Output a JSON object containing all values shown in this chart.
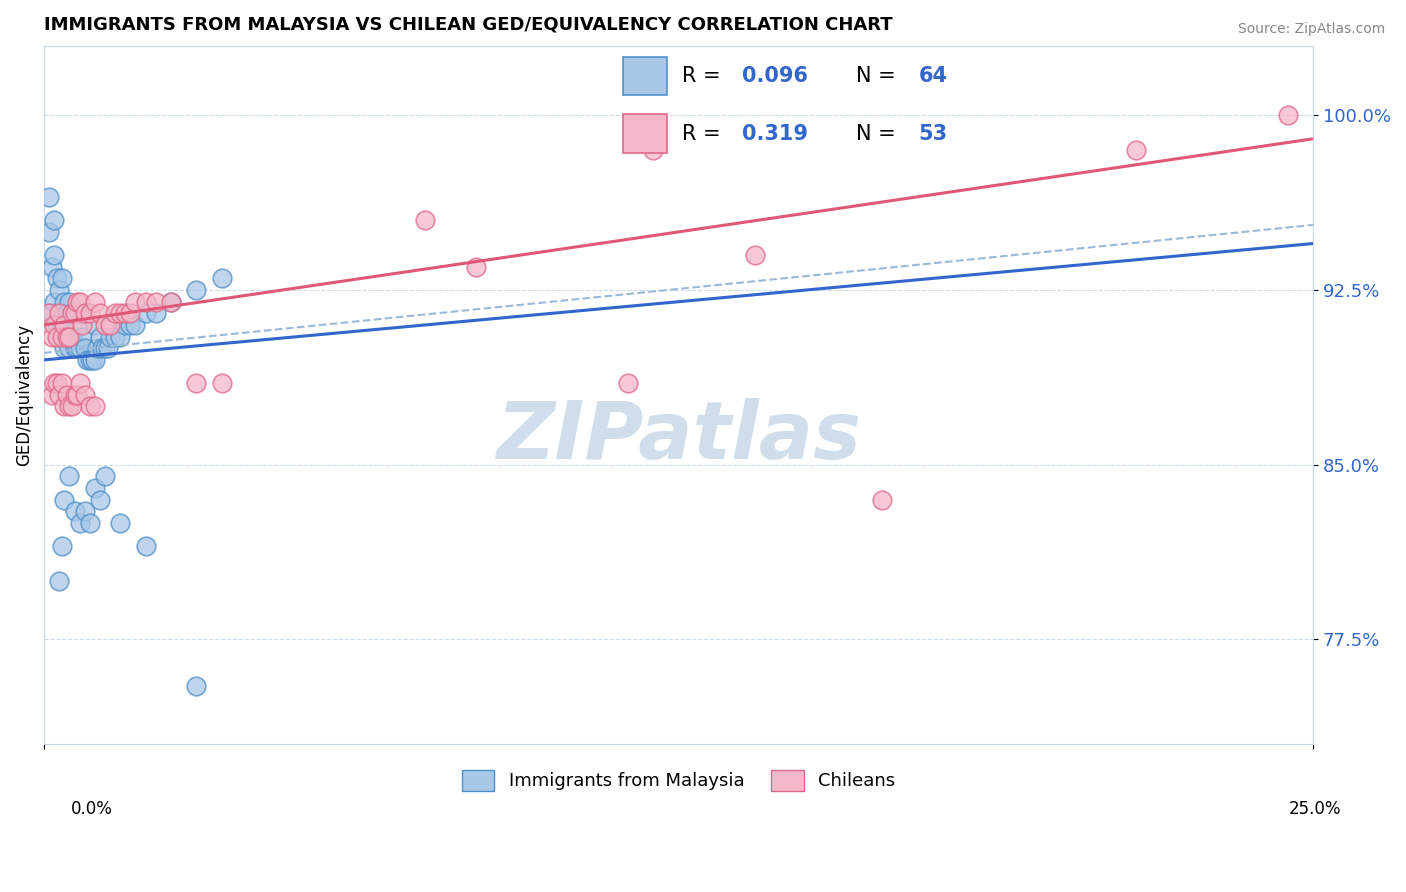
{
  "title": "IMMIGRANTS FROM MALAYSIA VS CHILEAN GED/EQUIVALENCY CORRELATION CHART",
  "source": "Source: ZipAtlas.com",
  "ylabel": "GED/Equivalency",
  "yticks": [
    77.5,
    85.0,
    92.5,
    100.0
  ],
  "ytick_labels": [
    "77.5%",
    "85.0%",
    "92.5%",
    "100.0%"
  ],
  "xmin": 0.0,
  "xmax": 25.0,
  "ymin": 73.0,
  "ymax": 103.0,
  "legend_label1": "Immigrants from Malaysia",
  "legend_label2": "Chileans",
  "blue_color": "#a8c8e8",
  "pink_color": "#f4b8c8",
  "blue_edge": "#5090c8",
  "pink_edge": "#e06888",
  "trend_blue": "#3366cc",
  "trend_pink": "#e05878",
  "trend_gray": "#9ab8d8",
  "malaysia_x": [
    0.15,
    0.15,
    0.2,
    0.2,
    0.25,
    0.25,
    0.3,
    0.3,
    0.35,
    0.35,
    0.4,
    0.4,
    0.45,
    0.45,
    0.5,
    0.5,
    0.55,
    0.55,
    0.6,
    0.6,
    0.65,
    0.65,
    0.7,
    0.7,
    0.75,
    0.8,
    0.85,
    0.9,
    0.95,
    1.0,
    1.0,
    1.05,
    1.1,
    1.15,
    1.2,
    1.25,
    1.3,
    1.4,
    1.5,
    1.6,
    1.7,
    1.8,
    2.0,
    2.2,
    2.5,
    3.0,
    3.5,
    0.1,
    0.1,
    0.2,
    0.3,
    0.35,
    0.4,
    0.5,
    0.6,
    0.7,
    0.8,
    0.9,
    1.0,
    1.1,
    1.2,
    1.5,
    2.0,
    3.0
  ],
  "malaysia_y": [
    91.5,
    93.5,
    92.0,
    94.0,
    91.0,
    93.0,
    90.5,
    92.5,
    91.0,
    93.0,
    90.0,
    92.0,
    90.5,
    91.5,
    90.0,
    92.0,
    90.5,
    91.5,
    90.0,
    91.5,
    90.0,
    91.0,
    90.0,
    91.5,
    90.5,
    90.0,
    89.5,
    89.5,
    89.5,
    89.5,
    91.0,
    90.0,
    90.5,
    90.0,
    90.0,
    90.0,
    90.5,
    90.5,
    90.5,
    91.0,
    91.0,
    91.0,
    91.5,
    91.5,
    92.0,
    92.5,
    93.0,
    96.5,
    95.0,
    95.5,
    80.0,
    81.5,
    83.5,
    84.5,
    83.0,
    82.5,
    83.0,
    82.5,
    84.0,
    83.5,
    84.5,
    82.5,
    81.5,
    75.5
  ],
  "chilean_x": [
    0.1,
    0.15,
    0.2,
    0.25,
    0.3,
    0.35,
    0.4,
    0.45,
    0.5,
    0.55,
    0.6,
    0.65,
    0.7,
    0.75,
    0.8,
    0.9,
    1.0,
    1.1,
    1.2,
    1.3,
    1.4,
    1.5,
    1.6,
    1.7,
    1.8,
    2.0,
    2.2,
    2.5,
    3.0,
    3.5,
    0.15,
    0.2,
    0.25,
    0.3,
    0.35,
    0.4,
    0.45,
    0.5,
    0.55,
    0.6,
    0.65,
    0.7,
    0.8,
    0.9,
    1.0,
    7.5,
    12.0,
    21.5,
    24.5,
    11.5,
    14.0,
    8.5,
    16.5
  ],
  "chilean_y": [
    91.5,
    90.5,
    91.0,
    90.5,
    91.5,
    90.5,
    91.0,
    90.5,
    90.5,
    91.5,
    91.5,
    92.0,
    92.0,
    91.0,
    91.5,
    91.5,
    92.0,
    91.5,
    91.0,
    91.0,
    91.5,
    91.5,
    91.5,
    91.5,
    92.0,
    92.0,
    92.0,
    92.0,
    88.5,
    88.5,
    88.0,
    88.5,
    88.5,
    88.0,
    88.5,
    87.5,
    88.0,
    87.5,
    87.5,
    88.0,
    88.0,
    88.5,
    88.0,
    87.5,
    87.5,
    95.5,
    98.5,
    98.5,
    100.0,
    88.5,
    94.0,
    93.5,
    83.5
  ],
  "r1": "0.096",
  "n1": "64",
  "r2": "0.319",
  "n2": "53"
}
